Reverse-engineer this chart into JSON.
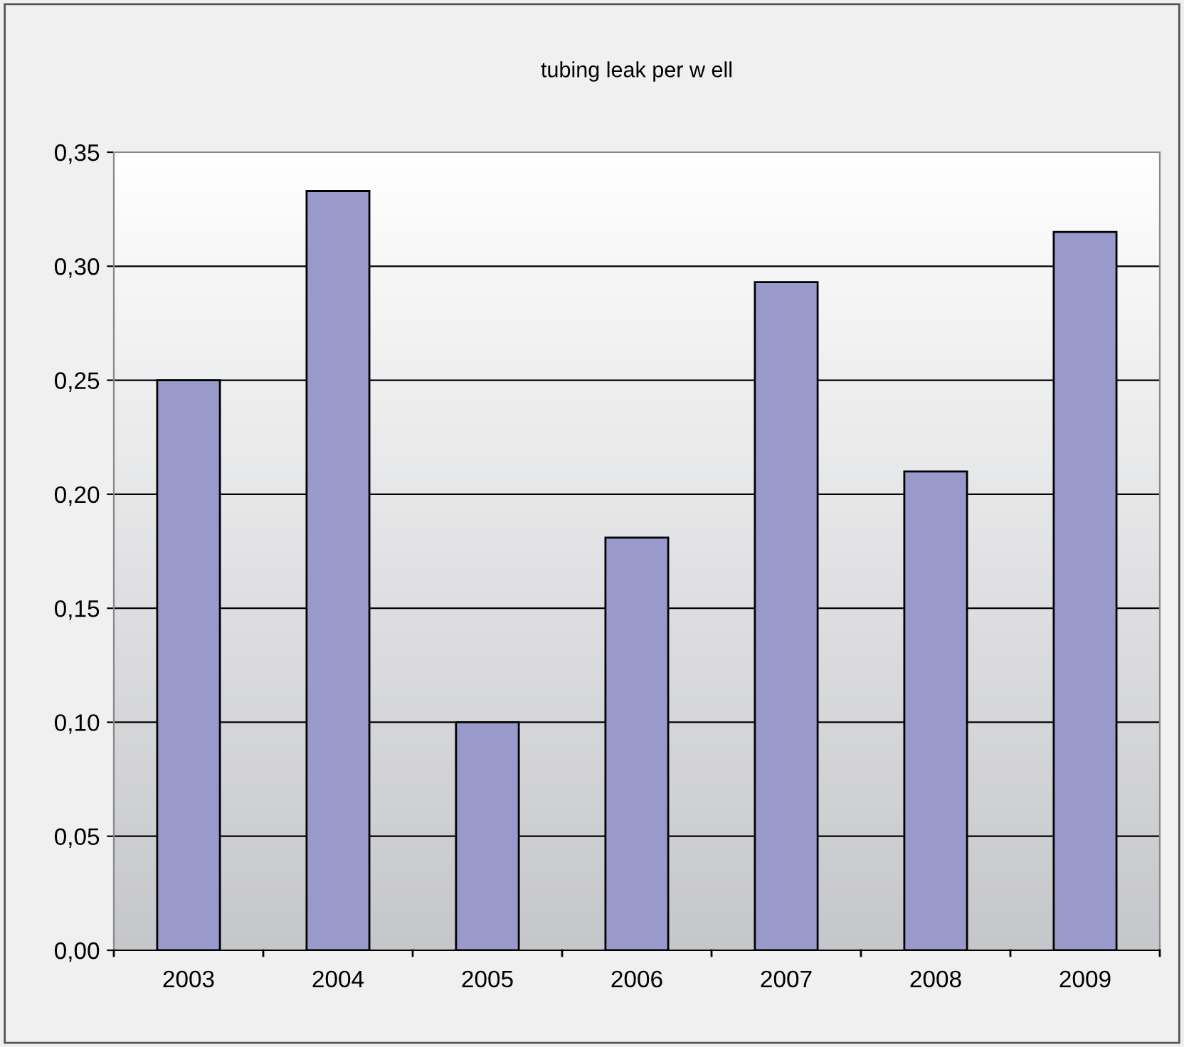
{
  "chart_data": {
    "type": "bar",
    "title": "tubing leak per w ell",
    "categories": [
      "2003",
      "2004",
      "2005",
      "2006",
      "2007",
      "2008",
      "2009"
    ],
    "values": [
      0.25,
      0.333,
      0.1,
      0.181,
      0.293,
      0.21,
      0.315
    ],
    "color": "#9999cc",
    "ylim": [
      0,
      0.35
    ],
    "yticks": [
      {
        "value": 0,
        "label": "0,00"
      },
      {
        "value": 0.05,
        "label": "0,05"
      },
      {
        "value": 0.1,
        "label": "0,10"
      },
      {
        "value": 0.15,
        "label": "0,15"
      },
      {
        "value": 0.2,
        "label": "0,20"
      },
      {
        "value": 0.25,
        "label": "0,25"
      },
      {
        "value": 0.3,
        "label": "0,30"
      },
      {
        "value": 0.35,
        "label": "0,35"
      }
    ],
    "grid": "y",
    "legend": false
  }
}
